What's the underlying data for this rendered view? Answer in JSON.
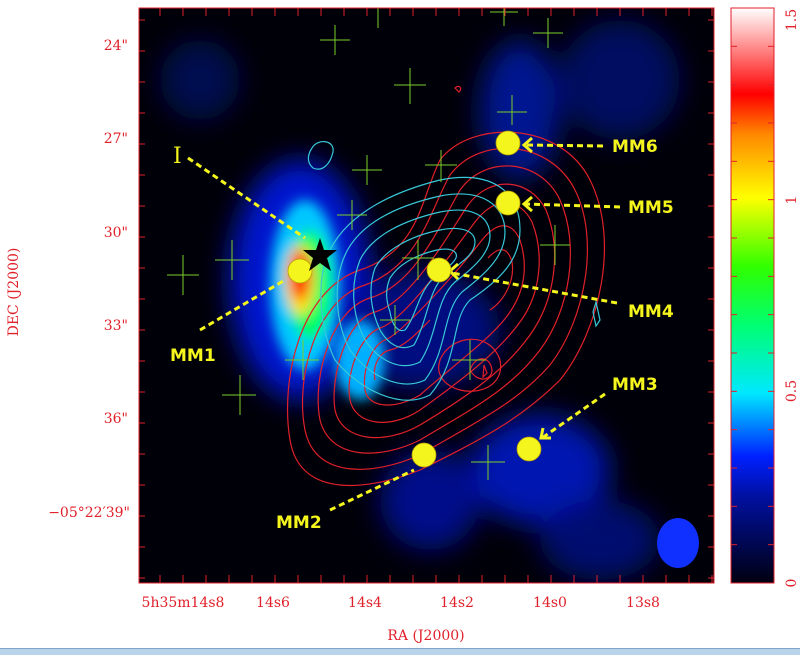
{
  "chart_data": {
    "type": "heatmap",
    "xlabel": "RA (J2000)",
    "ylabel": "DEC (J2000)",
    "x_ticks": [
      "5h35m14s8",
      "14s6",
      "14s4",
      "14s2",
      "14s0",
      "13s8"
    ],
    "y_ticks": [
      "24\"",
      "27\"",
      "30\"",
      "33\"",
      "36\"",
      "−05°22′39\""
    ],
    "colorbar": {
      "range": [
        0,
        1.5
      ],
      "ticks": [
        "0",
        "0.5",
        "1",
        "1.5"
      ],
      "colormap": "black-blue-cyan-green-yellow-red-white"
    },
    "contours": [
      {
        "color": "#e0202a"
      },
      {
        "color": "#38c8d8"
      }
    ],
    "markers": {
      "cross_color": "#7ccf2a",
      "source_color": "#f5f51e",
      "star_color": "#000000",
      "beam_color": "#1030ff"
    },
    "annotations": [
      {
        "label": "MM1",
        "ra": "14.55",
        "dec": "31.2"
      },
      {
        "label": "MM2",
        "ra": "14.28",
        "dec": "37.1"
      },
      {
        "label": "MM3",
        "ra": "14.05",
        "dec": "36.9"
      },
      {
        "label": "MM4",
        "ra": "14.25",
        "dec": "31.1"
      },
      {
        "label": "MM5",
        "ra": "14.10",
        "dec": "29.0"
      },
      {
        "label": "MM6",
        "ra": "14.10",
        "dec": "27.1"
      },
      {
        "label": "I"
      }
    ]
  }
}
